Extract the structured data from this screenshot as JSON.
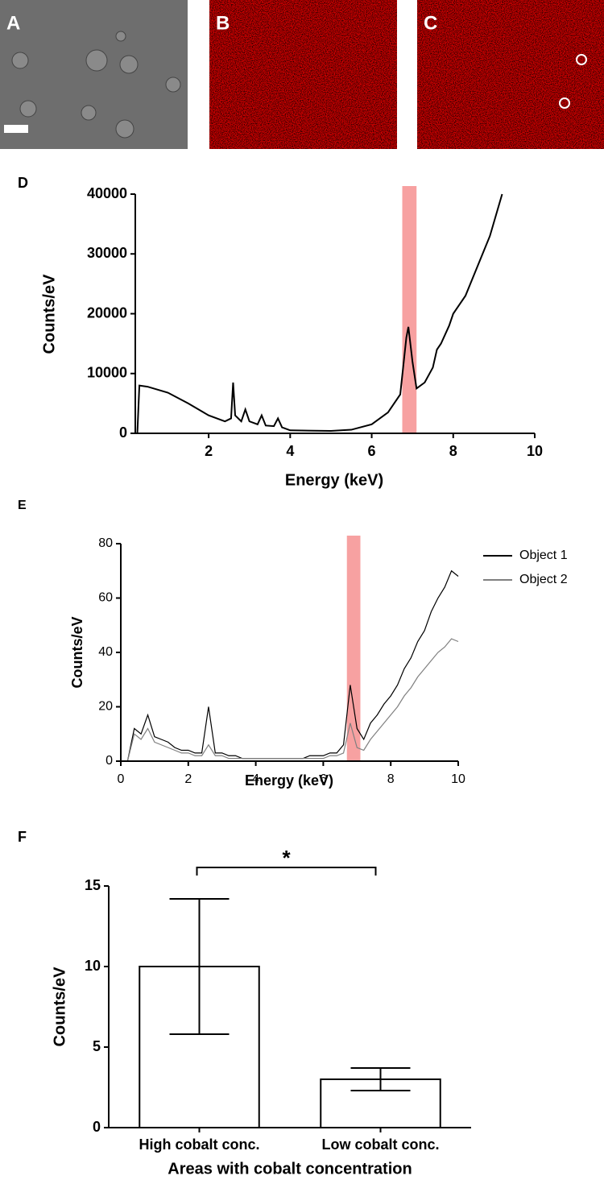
{
  "images": [
    {
      "label": "A"
    },
    {
      "label": "B"
    },
    {
      "label": "C"
    }
  ],
  "chart_data": [
    {
      "type": "line",
      "panel_label": "D",
      "xlabel": "Energy (keV)",
      "ylabel": "Counts/eV",
      "xlim": [
        0.2,
        10
      ],
      "xticks": [
        2,
        4,
        6,
        8,
        10
      ],
      "ylim": [
        0,
        40000
      ],
      "yticks": [
        0,
        10000,
        20000,
        30000,
        40000
      ],
      "highlight": {
        "x": [
          6.75,
          7.1
        ],
        "color": "#f7a1a1"
      },
      "x": [
        0.25,
        0.3,
        0.5,
        1.0,
        1.5,
        2.0,
        2.4,
        2.55,
        2.6,
        2.65,
        2.8,
        2.9,
        3.0,
        3.2,
        3.3,
        3.4,
        3.6,
        3.7,
        3.8,
        4.0,
        5.0,
        5.5,
        6.0,
        6.4,
        6.7,
        6.85,
        6.9,
        7.0,
        7.1,
        7.3,
        7.5,
        7.6,
        7.7,
        7.9,
        8.0,
        8.3,
        8.6,
        8.9,
        9.2
      ],
      "series": [
        {
          "color": "#000000",
          "values": [
            0,
            8000,
            7800,
            6800,
            5000,
            3000,
            2000,
            2500,
            8500,
            3000,
            2000,
            4000,
            2000,
            1500,
            3000,
            1300,
            1200,
            2500,
            1000,
            500,
            400,
            600,
            1500,
            3500,
            6500,
            16000,
            17800,
            12000,
            7500,
            8500,
            11000,
            14000,
            15000,
            18000,
            20000,
            23000,
            28000,
            33000,
            40000
          ]
        }
      ]
    },
    {
      "type": "line",
      "panel_label": "E",
      "xlabel": "Energy (keV)",
      "ylabel": "Counts/eV",
      "xlim": [
        0,
        10
      ],
      "xticks": [
        0,
        2,
        4,
        6,
        8,
        10
      ],
      "ylim": [
        0,
        80
      ],
      "yticks": [
        0,
        20,
        40,
        60,
        80
      ],
      "highlight": {
        "x": [
          6.7,
          7.1
        ],
        "color": "#f7a1a1"
      },
      "legend": "right",
      "x": [
        0.2,
        0.4,
        0.6,
        0.8,
        1.0,
        1.2,
        1.4,
        1.6,
        1.8,
        2.0,
        2.2,
        2.4,
        2.6,
        2.8,
        3.0,
        3.2,
        3.4,
        3.6,
        3.8,
        4.0,
        4.2,
        4.4,
        4.6,
        4.8,
        5.0,
        5.2,
        5.4,
        5.6,
        5.8,
        6.0,
        6.2,
        6.4,
        6.6,
        6.8,
        7.0,
        7.2,
        7.4,
        7.6,
        7.8,
        8.0,
        8.2,
        8.4,
        8.6,
        8.8,
        9.0,
        9.2,
        9.4,
        9.6,
        9.8,
        10.0
      ],
      "series": [
        {
          "name": "Object 1",
          "color": "#000000",
          "values": [
            0,
            12,
            10,
            17,
            9,
            8,
            7,
            5,
            4,
            4,
            3,
            3,
            20,
            3,
            3,
            2,
            2,
            1,
            1,
            1,
            1,
            1,
            1,
            1,
            1,
            1,
            1,
            2,
            2,
            2,
            3,
            3,
            6,
            28,
            12,
            8,
            14,
            17,
            21,
            24,
            28,
            34,
            38,
            44,
            48,
            55,
            60,
            64,
            70,
            68
          ]
        },
        {
          "name": "Object 2",
          "color": "#808080",
          "values": [
            0,
            10,
            8,
            12,
            7,
            6,
            5,
            4,
            3,
            3,
            2,
            2,
            6,
            2,
            2,
            1,
            1,
            1,
            1,
            1,
            1,
            1,
            1,
            1,
            1,
            1,
            1,
            1,
            1,
            1,
            2,
            2,
            3,
            14,
            5,
            4,
            8,
            11,
            14,
            17,
            20,
            24,
            27,
            31,
            34,
            37,
            40,
            42,
            45,
            44
          ]
        }
      ]
    },
    {
      "type": "bar",
      "panel_label": "F",
      "xlabel": "Areas with cobalt concentration",
      "ylabel": "Counts/eV",
      "categories": [
        "High cobalt conc.",
        "Low cobalt conc."
      ],
      "values": [
        10,
        3
      ],
      "errors": [
        4.2,
        0.7
      ],
      "color": "#ffffff",
      "ylim": [
        0,
        15
      ],
      "yticks": [
        0,
        5,
        10,
        15
      ],
      "annotation": "*"
    }
  ]
}
